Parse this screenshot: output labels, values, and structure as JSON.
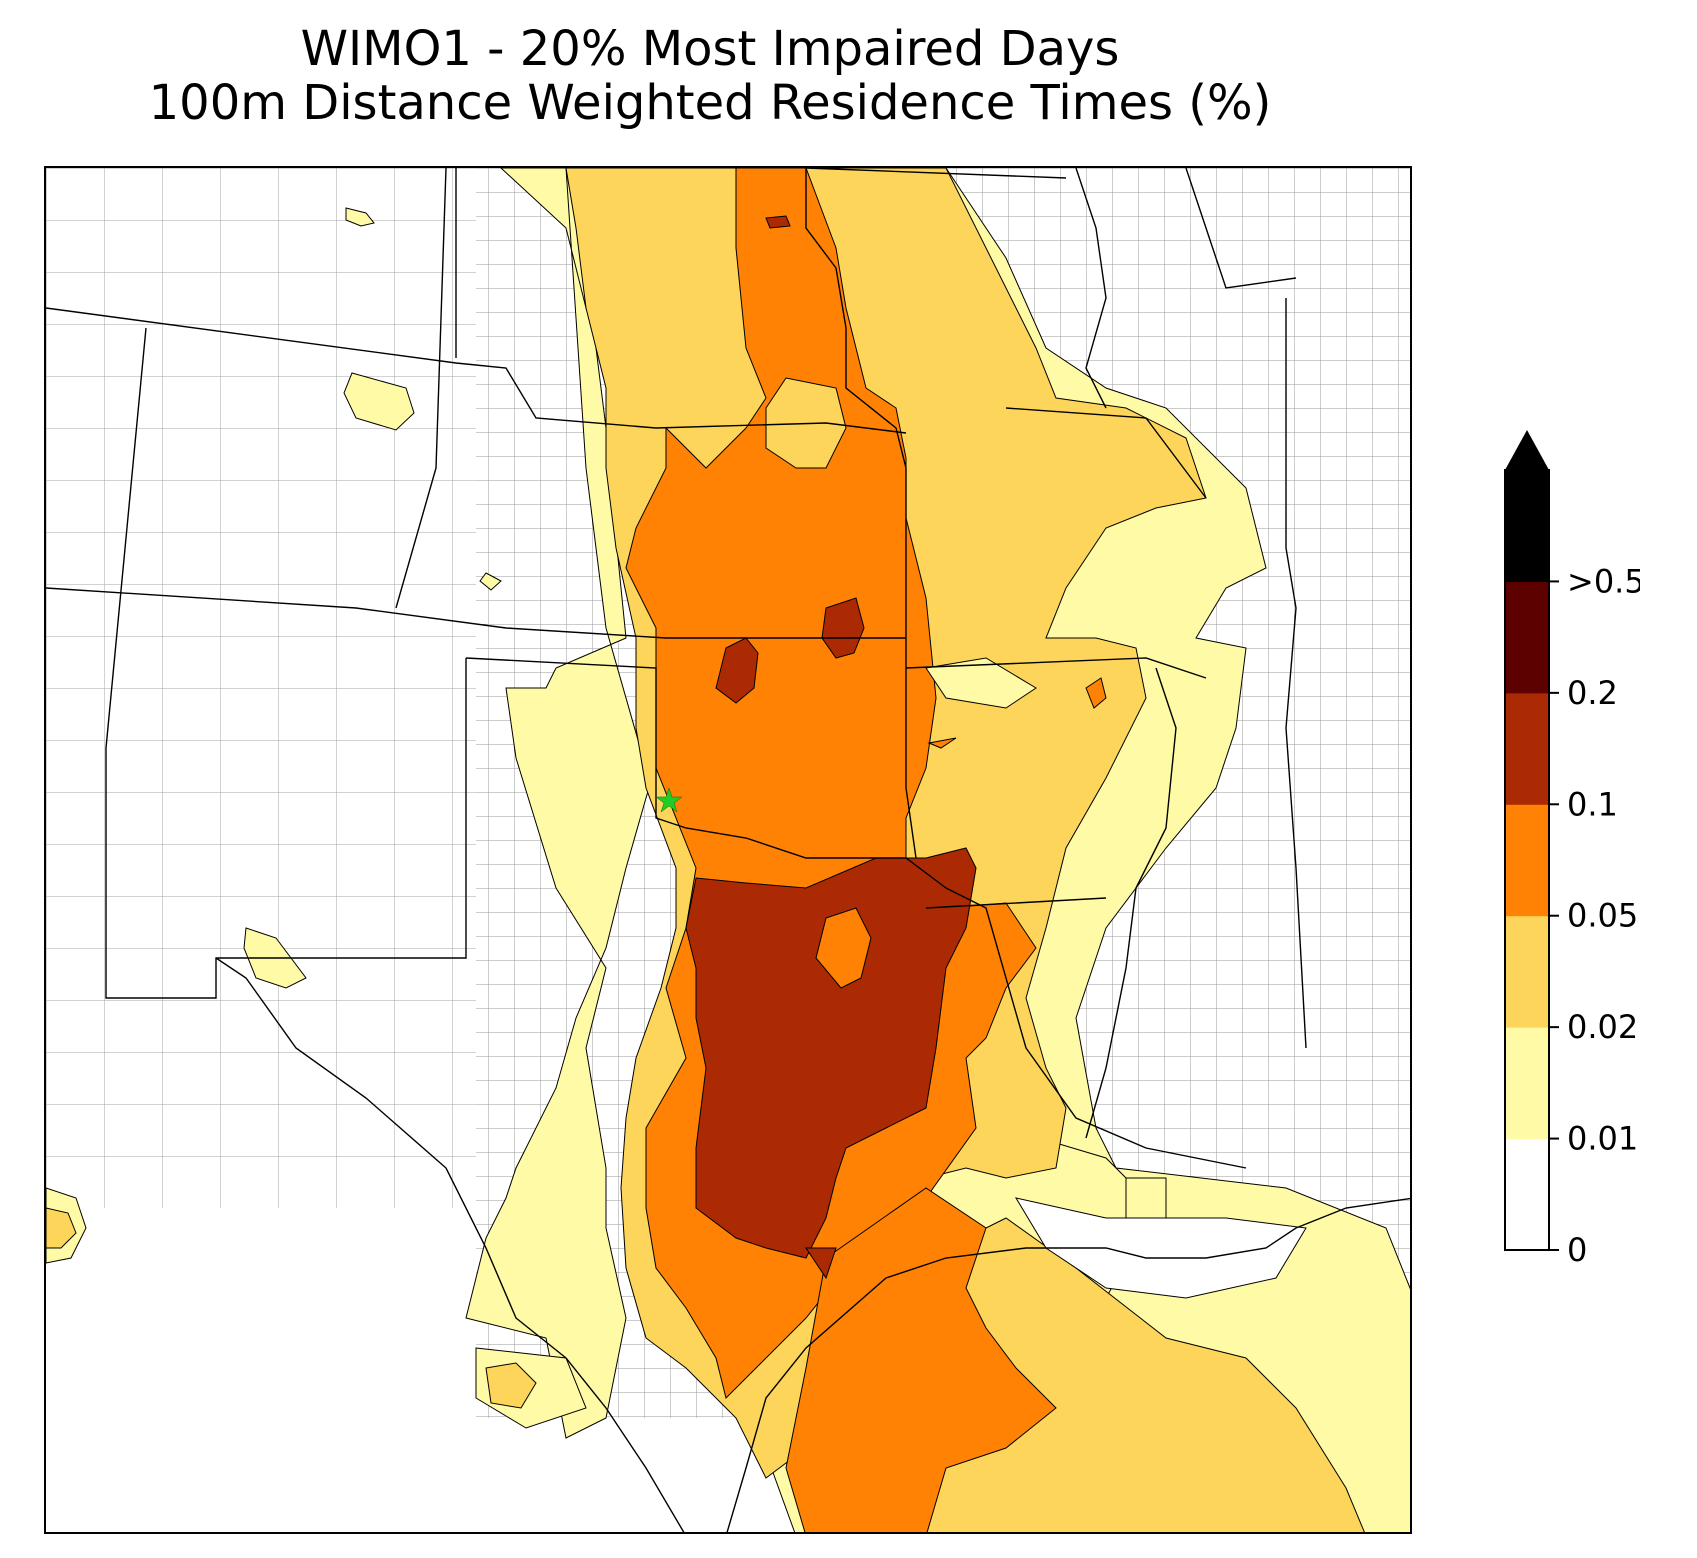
{
  "title": {
    "line1": "WIMO1 - 20% Most Impaired Days",
    "line2": "100m Distance Weighted Residence Times (%)"
  },
  "colorbar": {
    "ticks": [
      "0",
      "0.01",
      "0.02",
      "0.05",
      "0.1",
      "0.2",
      ">0.5"
    ],
    "bins": [
      {
        "from": "0",
        "to": "0.01",
        "color": "#ffffff"
      },
      {
        "from": "0.01",
        "to": "0.02",
        "color": "#fffaa5"
      },
      {
        "from": "0.02",
        "to": "0.05",
        "color": "#fdd55a"
      },
      {
        "from": "0.05",
        "to": "0.1",
        "color": "#ff8204"
      },
      {
        "from": "0.1",
        "to": "0.2",
        "color": "#ab2a03"
      },
      {
        "from": "0.2",
        "to": "0.5",
        "color": "#5c0000"
      },
      {
        "from": "0.5",
        "to": "max",
        "color": "#000000"
      }
    ],
    "extend": "max"
  },
  "marker": {
    "symbol": "star",
    "color": "#22cc22",
    "label_icon": "site-star-icon"
  },
  "colors": {
    "boundary_state": "#000000",
    "boundary_county": "#9a9a9a",
    "contour_edge": "#000000"
  }
}
